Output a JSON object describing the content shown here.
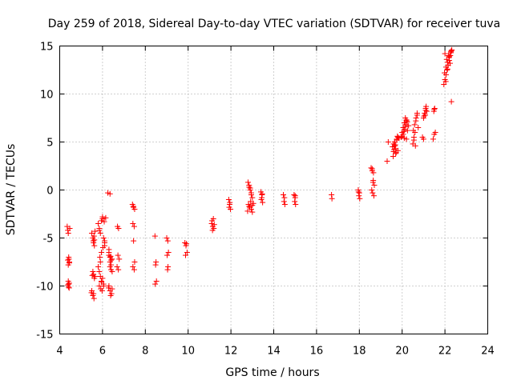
{
  "chart_data": {
    "type": "scatter",
    "title": "Day 259 of 2018, Sidereal Day-to-day VTEC variation (SDTVAR) for receiver tuva",
    "xlabel": "GPS time / hours",
    "ylabel": "SDTVAR / TECUs",
    "xlim": [
      4,
      24
    ],
    "ylim": [
      -15,
      15
    ],
    "xticks": [
      "4",
      "6",
      "8",
      "10",
      "12",
      "14",
      "16",
      "18",
      "20",
      "22",
      "24"
    ],
    "yticks": [
      "-15",
      "-10",
      "-5",
      "0",
      "5",
      "10",
      "15"
    ],
    "grid": true,
    "marker": "plus",
    "color": "#ff0000",
    "series": [
      {
        "name": "SDTVAR",
        "x": [
          4.35,
          4.38,
          4.4,
          4.42,
          4.45,
          4.38,
          4.4,
          4.43,
          4.45,
          4.4,
          4.42,
          4.44,
          4.38,
          4.41,
          4.44,
          4.47,
          5.5,
          5.55,
          5.58,
          5.6,
          5.62,
          5.55,
          5.58,
          5.62,
          5.65,
          5.5,
          5.55,
          5.6,
          5.58,
          5.62,
          5.65,
          5.48,
          5.52,
          5.57,
          5.8,
          5.85,
          5.9,
          5.95,
          6.0,
          6.05,
          6.1,
          5.85,
          5.9,
          5.95,
          6.0,
          5.85,
          5.92,
          5.98,
          6.05,
          5.88,
          5.95,
          6.02,
          6.1,
          5.8,
          5.9,
          6.0,
          6.08,
          6.15,
          5.85,
          5.95,
          6.05,
          6.1,
          6.25,
          6.3,
          6.35,
          6.4,
          6.3,
          6.35,
          6.4,
          6.45,
          6.28,
          6.35,
          6.42,
          6.3,
          6.38,
          6.45,
          6.35,
          6.4,
          6.3,
          6.38,
          6.45,
          6.35,
          6.7,
          6.75,
          6.72,
          6.78,
          6.68,
          6.74,
          7.4,
          7.45,
          7.5,
          7.42,
          7.48,
          7.45,
          7.5,
          7.42,
          7.48,
          7.44,
          8.45,
          8.5,
          8.48,
          8.52,
          8.46,
          9.0,
          9.05,
          9.08,
          9.02,
          9.06,
          9.04,
          9.85,
          9.9,
          9.95,
          9.88,
          9.92,
          11.1,
          11.15,
          11.2,
          11.12,
          11.18,
          11.14,
          11.22,
          11.9,
          11.95,
          11.92,
          11.98,
          11.94,
          12.8,
          12.85,
          12.9,
          12.95,
          13.0,
          12.82,
          12.88,
          12.95,
          13.0,
          12.78,
          12.85,
          12.92,
          13.0,
          13.05,
          12.85,
          12.9,
          12.95,
          13.4,
          13.45,
          13.42,
          13.48,
          13.44,
          13.46,
          14.45,
          14.5,
          14.48,
          14.52,
          14.95,
          15.0,
          14.98,
          15.02,
          15.0,
          16.7,
          16.72,
          17.95,
          18.0,
          17.98,
          18.02,
          17.96,
          18.55,
          18.6,
          18.65,
          18.7,
          18.58,
          18.62,
          18.68,
          18.6,
          18.66,
          18.64,
          19.3,
          19.35,
          19.55,
          19.6,
          19.65,
          19.7,
          19.75,
          19.8,
          19.58,
          19.62,
          19.68,
          19.72,
          19.78,
          19.85,
          19.6,
          19.7,
          19.8,
          19.65,
          19.75,
          19.95,
          20.0,
          20.05,
          20.1,
          20.15,
          20.2,
          20.25,
          20.3,
          20.05,
          20.1,
          20.15,
          20.2,
          20.0,
          20.08,
          20.16,
          20.24,
          20.1,
          20.2,
          20.5,
          20.55,
          20.6,
          20.65,
          20.7,
          20.52,
          20.58,
          20.64,
          20.7,
          20.75,
          20.55,
          20.62,
          20.95,
          21.0,
          21.05,
          21.1,
          21.15,
          21.0,
          21.08,
          21.12,
          21.02,
          21.1,
          21.45,
          21.5,
          21.55,
          21.48,
          21.52,
          21.5,
          21.95,
          22.0,
          22.05,
          22.1,
          22.15,
          22.2,
          22.25,
          22.3,
          21.98,
          22.05,
          22.12,
          22.2,
          22.28,
          22.0,
          22.08,
          22.16,
          22.24,
          22.32,
          22.04,
          22.12,
          22.2,
          22.28,
          22.3
        ],
        "y": [
          -3.8,
          -4.2,
          -4.5,
          -7.0,
          -7.5,
          -7.3,
          -7.8,
          -7.2,
          -7.6,
          -9.5,
          -9.8,
          -10.2,
          -9.9,
          -10.1,
          -9.7,
          -4.0,
          -4.5,
          -5.0,
          -5.5,
          -4.8,
          -5.2,
          -8.5,
          -8.8,
          -9.2,
          -9.0,
          -10.5,
          -11.0,
          -11.3,
          -10.8,
          -5.8,
          -4.3,
          -10.7,
          -8.9,
          -5.3,
          -3.5,
          -4.0,
          -4.5,
          -3.2,
          -2.8,
          -5.0,
          -5.5,
          -8.5,
          -9.0,
          -9.5,
          -9.2,
          -10.0,
          -10.3,
          -10.5,
          -9.8,
          -7.0,
          -6.5,
          -6.0,
          -5.8,
          -8.0,
          -7.5,
          -3.0,
          -3.3,
          -2.9,
          -4.2,
          -9.6,
          -10.0,
          -5.3,
          -0.3,
          -6.5,
          -7.0,
          -7.3,
          -6.8,
          -8.0,
          -8.3,
          -8.5,
          -10.2,
          -10.5,
          -10.8,
          -10.0,
          -11.0,
          -10.3,
          -7.5,
          -7.8,
          -6.2,
          -6.9,
          -7.2,
          -0.4,
          -3.8,
          -4.0,
          -6.8,
          -7.2,
          -8.0,
          -8.3,
          -1.5,
          -1.8,
          -2.0,
          -3.5,
          -3.8,
          -5.3,
          -7.5,
          -8.0,
          -8.3,
          -1.7,
          -4.8,
          -7.5,
          -7.8,
          -9.5,
          -9.8,
          -5.0,
          -5.3,
          -6.5,
          -6.8,
          -8.0,
          -8.3,
          -5.5,
          -5.8,
          -6.5,
          -6.8,
          -5.6,
          -3.5,
          -3.8,
          -4.0,
          -3.2,
          -3.0,
          -4.2,
          -3.6,
          -1.0,
          -1.3,
          -1.8,
          -2.0,
          -1.5,
          0.8,
          0.5,
          0.2,
          -0.5,
          -0.8,
          -1.5,
          -1.8,
          -2.0,
          -2.3,
          -2.2,
          -1.7,
          -1.2,
          -1.6,
          -1.4,
          0.3,
          0.0,
          -0.3,
          -0.2,
          -0.5,
          -1.0,
          -1.3,
          -0.8,
          -0.4,
          -0.5,
          -0.8,
          -1.2,
          -1.5,
          -0.5,
          -0.8,
          -1.2,
          -1.5,
          -0.6,
          -0.5,
          -0.9,
          0.0,
          -0.3,
          -0.6,
          -0.9,
          -0.2,
          2.3,
          2.0,
          1.0,
          0.5,
          0.0,
          -0.3,
          -0.6,
          2.2,
          1.8,
          0.8,
          3.0,
          5.0,
          4.5,
          4.0,
          5.0,
          3.8,
          5.3,
          5.5,
          3.5,
          4.2,
          4.7,
          3.9,
          5.6,
          5.4,
          4.8,
          4.3,
          4.1,
          4.6,
          5.2,
          5.5,
          6.0,
          6.5,
          7.0,
          7.5,
          5.3,
          6.2,
          6.7,
          5.8,
          6.3,
          6.8,
          7.3,
          5.6,
          6.1,
          6.6,
          7.1,
          5.4,
          7.2,
          4.8,
          5.5,
          6.0,
          7.5,
          8.0,
          6.2,
          6.8,
          7.2,
          7.8,
          6.5,
          5.2,
          4.6,
          5.5,
          7.5,
          8.0,
          8.5,
          8.2,
          5.3,
          7.8,
          8.7,
          7.7,
          8.3,
          5.3,
          5.8,
          6.0,
          8.2,
          8.5,
          8.4,
          11.0,
          11.5,
          12.0,
          12.5,
          13.0,
          13.5,
          14.0,
          14.5,
          12.2,
          12.8,
          13.3,
          13.8,
          14.3,
          14.2,
          13.6,
          14.0,
          13.2,
          14.6,
          11.3,
          12.6,
          13.9,
          14.4,
          9.2
        ]
      }
    ]
  }
}
